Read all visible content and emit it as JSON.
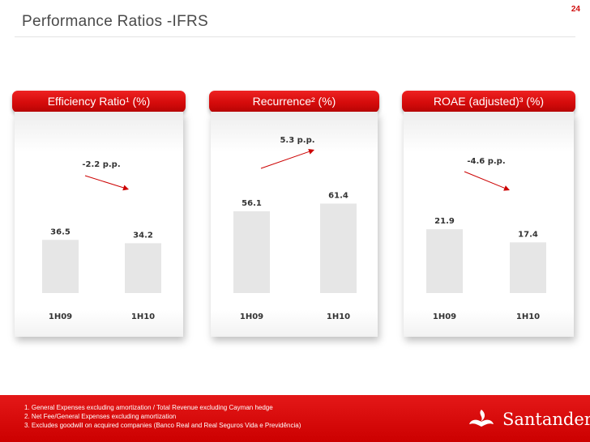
{
  "page": {
    "title": "Performance Ratios -IFRS",
    "number": "24"
  },
  "chart_data": [
    {
      "type": "bar",
      "title": "Efficiency Ratio¹ (%)",
      "categories": [
        "1H09",
        "1H10"
      ],
      "values": [
        36.5,
        34.2
      ],
      "value_labels": [
        "36.5",
        "34.2"
      ],
      "annotation": "-2.2 p.p.",
      "trend": "down",
      "ylim": [
        0,
        100
      ]
    },
    {
      "type": "bar",
      "title": "Recurrence² (%)",
      "categories": [
        "1H09",
        "1H10"
      ],
      "values": [
        56.1,
        61.4
      ],
      "value_labels": [
        "56.1",
        "61.4"
      ],
      "annotation": "5.3 p.p.",
      "trend": "up",
      "ylim": [
        0,
        100
      ]
    },
    {
      "type": "bar",
      "title": "ROAE (adjusted)³ (%)",
      "categories": [
        "1H09",
        "1H10"
      ],
      "values": [
        21.9,
        17.4
      ],
      "value_labels": [
        "21.9",
        "17.4"
      ],
      "annotation": "-4.6 p.p.",
      "trend": "down",
      "ylim": [
        0,
        50
      ]
    }
  ],
  "footnotes": [
    "1. General Expenses excluding amortization / Total Revenue excluding Cayman hedge",
    "2. Net Fee/General Expenses excluding amortization",
    "3. Excludes goodwill on acquired companies (Banco Real and Real Seguros Vida e Previdência)"
  ],
  "brand": {
    "name": "Santander",
    "color": "#cc0000",
    "bar_color": "#e6e6e6",
    "label_color": "#333333",
    "logo_icon": "santander-flame-icon"
  }
}
